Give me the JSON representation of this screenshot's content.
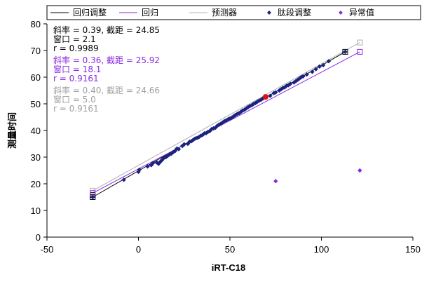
{
  "chart_data": {
    "type": "scatter",
    "xlabel": "iRT-C18",
    "ylabel": "测量时间",
    "xlim": [
      -50,
      150
    ],
    "ylim": [
      0,
      80
    ],
    "xticks": [
      -50,
      0,
      50,
      100,
      150
    ],
    "yticks": [
      0,
      10,
      20,
      30,
      40,
      50,
      60,
      70,
      80
    ],
    "grid": false,
    "legend_position": "top",
    "legend": [
      {
        "label": "回归调整",
        "kind": "line",
        "color": "#000000"
      },
      {
        "label": "回归",
        "kind": "line",
        "color": "#8a2be2"
      },
      {
        "label": "预测器",
        "kind": "line",
        "color": "#b0b0b0"
      },
      {
        "label": "肽段调整",
        "kind": "marker",
        "color": "#1a237e"
      },
      {
        "label": "异常值",
        "kind": "marker",
        "color": "#8a2be2"
      }
    ],
    "annotations": [
      {
        "lines": [
          "斜率 = 0.39, 截距 = 24.85",
          "窗口 = 2.1",
          "r = 0.9989"
        ],
        "color": "#000000"
      },
      {
        "lines": [
          "斜率 = 0.36, 截距 = 25.92",
          "窗口 = 18.1",
          "r = 0.9161"
        ],
        "color": "#8a2be2"
      },
      {
        "lines": [
          "斜率 = 0.40, 截距 = 24.66",
          "窗口 = 5.0",
          "r = 0.9161"
        ],
        "color": "#a0a0a0"
      }
    ],
    "regression_lines": [
      {
        "name": "回归调整",
        "x": [
          -25,
          113
        ],
        "y": [
          15.0,
          69.5
        ],
        "color": "#000000"
      },
      {
        "name": "回归",
        "x": [
          -25,
          121
        ],
        "y": [
          16.5,
          69.5
        ],
        "color": "#8a2be2"
      },
      {
        "name": "预测器",
        "x": [
          -25,
          121
        ],
        "y": [
          17.4,
          73.0
        ],
        "color": "#b0b0b0"
      }
    ],
    "series": [
      {
        "name": "肽段调整",
        "color": "#1a237e",
        "points": [
          [
            -25,
            15.0
          ],
          [
            -8,
            21.5
          ],
          [
            0,
            24.5
          ],
          [
            0.5,
            25.3
          ],
          [
            5,
            26.5
          ],
          [
            7,
            27.0
          ],
          [
            8,
            27.8
          ],
          [
            10,
            28.0
          ],
          [
            11,
            27.5
          ],
          [
            12,
            28.3
          ],
          [
            13,
            29.0
          ],
          [
            14,
            29.8
          ],
          [
            15,
            30.0
          ],
          [
            16,
            30.5
          ],
          [
            17,
            31.0
          ],
          [
            18,
            31.3
          ],
          [
            19,
            31.9
          ],
          [
            20,
            32.3
          ],
          [
            21,
            33.2
          ],
          [
            22,
            33.0
          ],
          [
            24,
            34.2
          ],
          [
            25,
            34.8
          ],
          [
            27,
            35.0
          ],
          [
            28,
            35.8
          ],
          [
            29,
            36.0
          ],
          [
            30,
            36.5
          ],
          [
            31,
            37.0
          ],
          [
            32,
            37.2
          ],
          [
            33,
            37.5
          ],
          [
            34,
            38.0
          ],
          [
            35,
            38.3
          ],
          [
            36,
            38.9
          ],
          [
            37,
            39.0
          ],
          [
            38,
            39.5
          ],
          [
            39,
            39.8
          ],
          [
            40,
            40.5
          ],
          [
            41,
            40.8
          ],
          [
            42,
            41.0
          ],
          [
            43,
            41.7
          ],
          [
            44,
            42.2
          ],
          [
            45,
            42.5
          ],
          [
            46,
            43.0
          ],
          [
            47,
            43.5
          ],
          [
            48,
            43.8
          ],
          [
            49,
            44.2
          ],
          [
            50,
            44.5
          ],
          [
            51,
            44.8
          ],
          [
            52,
            45.3
          ],
          [
            53,
            45.8
          ],
          [
            54,
            46.2
          ],
          [
            55,
            46.5
          ],
          [
            56,
            47.0
          ],
          [
            57,
            47.5
          ],
          [
            58,
            47.8
          ],
          [
            59,
            48.3
          ],
          [
            60,
            48.8
          ],
          [
            61,
            49.2
          ],
          [
            62,
            49.5
          ],
          [
            63,
            50.0
          ],
          [
            64,
            50.3
          ],
          [
            65,
            50.8
          ],
          [
            66,
            51.2
          ],
          [
            67,
            51.5
          ],
          [
            68,
            52.0
          ],
          [
            72,
            53.0
          ],
          [
            74,
            54.0
          ],
          [
            75,
            54.3
          ],
          [
            77,
            55.0
          ],
          [
            78,
            55.5
          ],
          [
            79,
            56.0
          ],
          [
            80,
            56.2
          ],
          [
            81,
            56.8
          ],
          [
            82,
            57.0
          ],
          [
            83,
            57.5
          ],
          [
            85,
            58.0
          ],
          [
            86,
            58.5
          ],
          [
            87,
            59.0
          ],
          [
            88,
            59.5
          ],
          [
            89,
            60.0
          ],
          [
            90,
            60.3
          ],
          [
            92,
            61.0
          ],
          [
            95,
            62.0
          ],
          [
            97,
            63.0
          ],
          [
            99,
            64.0
          ],
          [
            101,
            64.5
          ],
          [
            104,
            66.0
          ],
          [
            113,
            69.5
          ]
        ]
      },
      {
        "name": "异常值",
        "color": "#8a2be2",
        "points": [
          [
            75,
            21.0
          ],
          [
            121,
            25.0
          ]
        ]
      },
      {
        "name": "",
        "color": "#e01010",
        "points": [
          [
            69.5,
            52.6
          ]
        ]
      }
    ],
    "endpoint_markers": [
      {
        "x": -25,
        "y": 15.0,
        "color": "#000000"
      },
      {
        "x": -25,
        "y": 15.8,
        "color": "#000000"
      },
      {
        "x": 113,
        "y": 69.5,
        "color": "#000000"
      },
      {
        "x": -25,
        "y": 17.4,
        "color": "#b0b0b0"
      },
      {
        "x": 121,
        "y": 73.0,
        "color": "#b0b0b0"
      },
      {
        "x": -25,
        "y": 16.5,
        "color": "#8a2be2"
      },
      {
        "x": 121,
        "y": 69.5,
        "color": "#8a2be2"
      }
    ]
  }
}
